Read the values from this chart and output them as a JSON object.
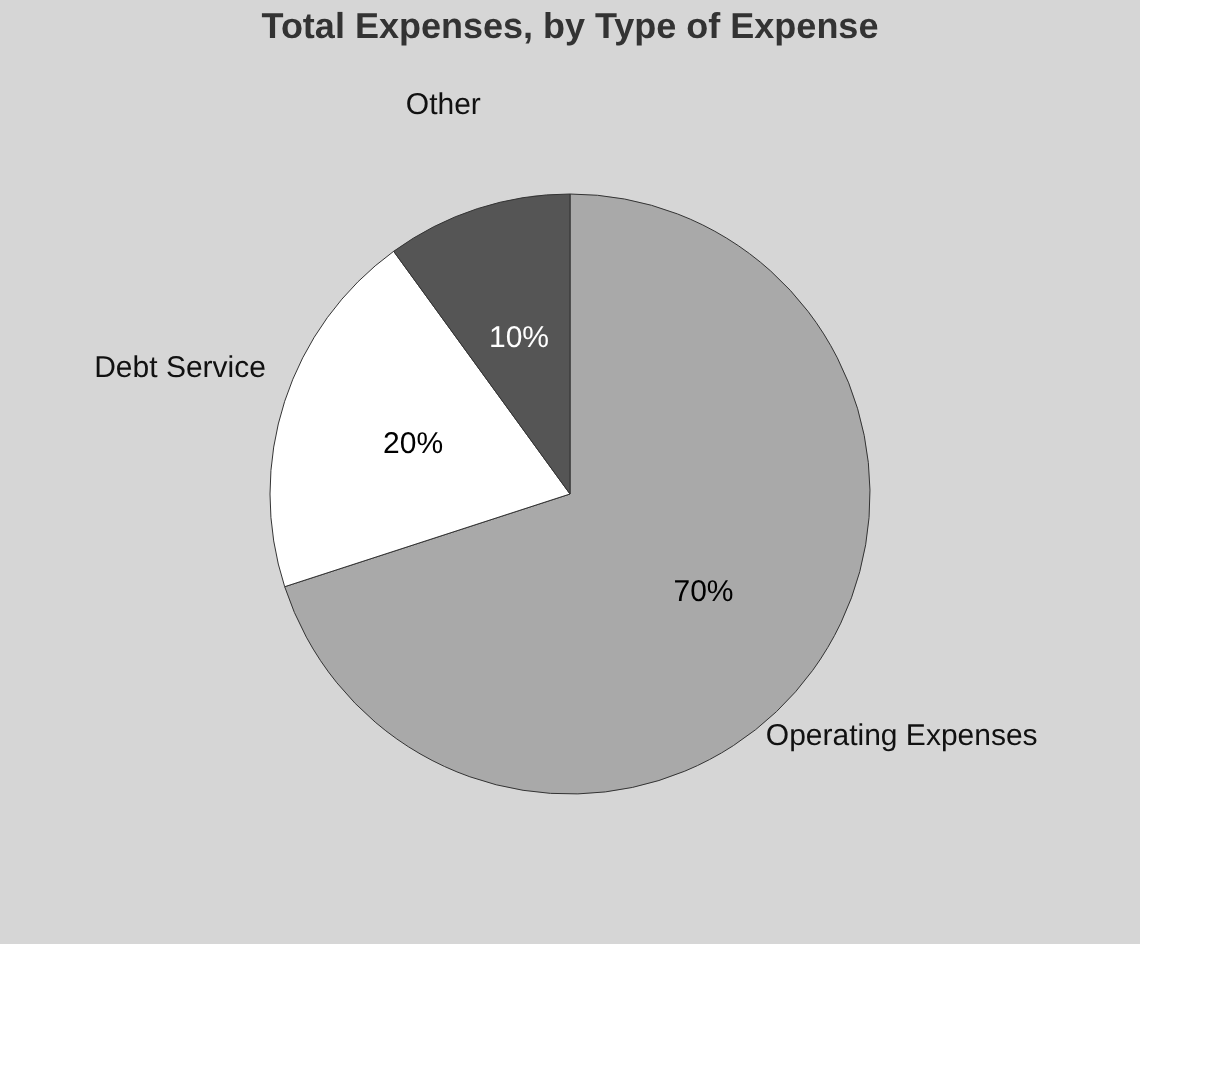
{
  "chart_data": {
    "type": "pie",
    "title": "Total Expenses, by Type of Expense",
    "categories": [
      "Operating Expenses",
      "Debt Service",
      "Other"
    ],
    "values": [
      70,
      20,
      10
    ],
    "colors": [
      "#a9a9a9",
      "#ffffff",
      "#555555"
    ],
    "value_labels": [
      "70%",
      "20%",
      "10%"
    ],
    "legend": false
  }
}
